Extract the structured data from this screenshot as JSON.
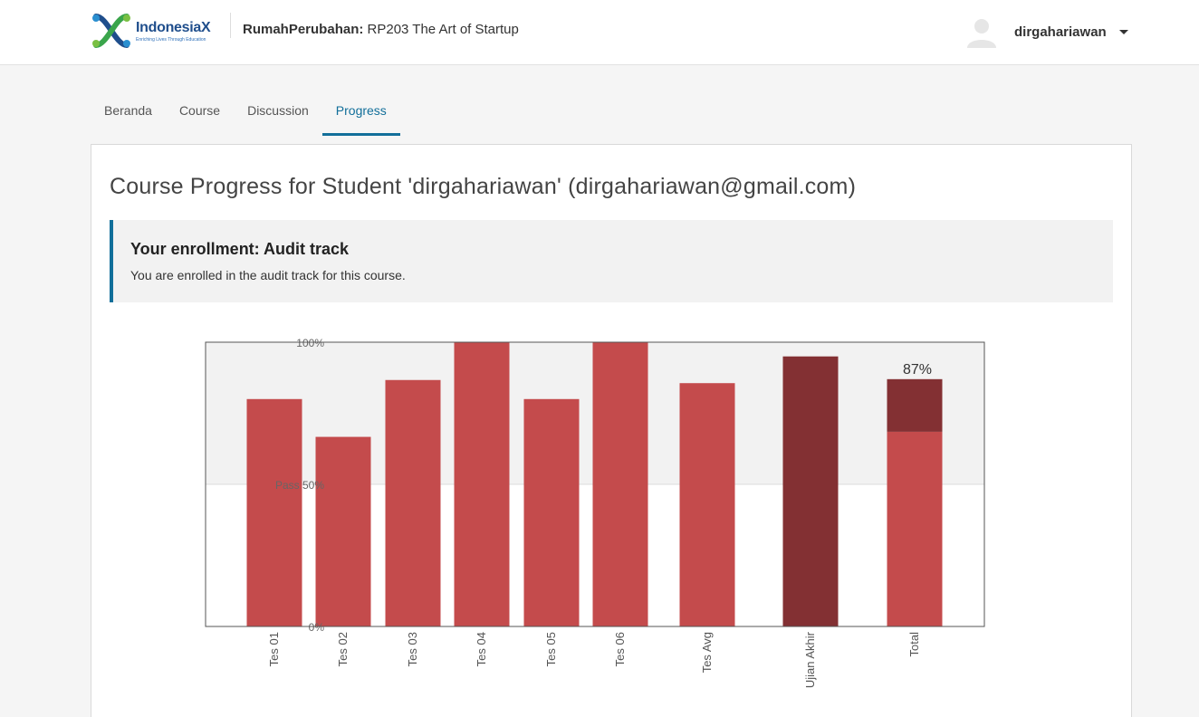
{
  "header": {
    "logo_name": "Indonesia",
    "logo_x": "X",
    "logo_tagline": "Enriching Lives Through Education",
    "course_org": "RumahPerubahan:",
    "course_name": "RP203 The Art of Startup",
    "username": "dirgahariawan"
  },
  "tabs": [
    {
      "label": "Beranda",
      "active": false
    },
    {
      "label": "Course",
      "active": false
    },
    {
      "label": "Discussion",
      "active": false
    },
    {
      "label": "Progress",
      "active": true
    }
  ],
  "main": {
    "title": "Course Progress for Student 'dirgahariawan' (dirgahariawan@gmail.com)",
    "notice_title": "Your enrollment: Audit track",
    "notice_text": "You are enrolled in the audit track for this course."
  },
  "colors": {
    "accent": "#126f9a",
    "bar": "#c44b4c",
    "bar_dark": "#833033",
    "pass_band": "#f2f2f2"
  },
  "chart_data": {
    "type": "bar",
    "categories": [
      "Tes 01",
      "Tes 02",
      "Tes 03",
      "Tes 04",
      "Tes 05",
      "Tes 06",
      "Tes Avg",
      "Ujian Akhir",
      "Total"
    ],
    "values": [
      80,
      66.7,
      86.7,
      100,
      80,
      100,
      85.6,
      95,
      87
    ],
    "total_breakdown": {
      "tests_portion": 68.5,
      "exam_portion": 18.5
    },
    "ylim": [
      0,
      100
    ],
    "y_ticks": [
      {
        "value": 100,
        "label": "100%"
      },
      {
        "value": 50,
        "label": "Pass 50%"
      },
      {
        "value": 0,
        "label": "0%"
      }
    ],
    "total_label": "87%",
    "pass_threshold": 50
  }
}
